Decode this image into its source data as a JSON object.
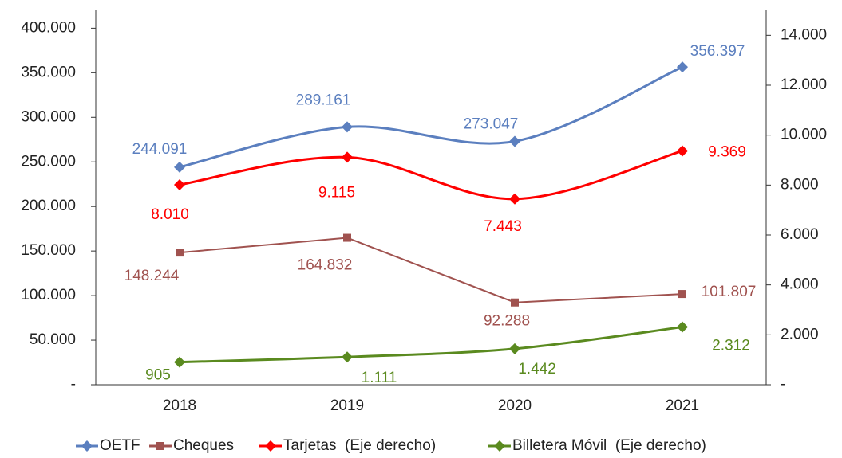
{
  "chart_data": {
    "type": "line",
    "categories": [
      "2018",
      "2019",
      "2020",
      "2021"
    ],
    "ylim": [
      0,
      420000
    ],
    "yticks": [
      {
        "value": 0,
        "label": "-"
      },
      {
        "value": 50000,
        "label": "50.000"
      },
      {
        "value": 100000,
        "label": "100.000"
      },
      {
        "value": 150000,
        "label": "150.000"
      },
      {
        "value": 200000,
        "label": "200.000"
      },
      {
        "value": 250000,
        "label": "250.000"
      },
      {
        "value": 300000,
        "label": "300.000"
      },
      {
        "value": 350000,
        "label": "350.000"
      },
      {
        "value": 400000,
        "label": "400.000"
      }
    ],
    "y2lim": [
      0,
      15000
    ],
    "y2ticks": [
      {
        "value": 0,
        "label": "-"
      },
      {
        "value": 2000,
        "label": "2.000"
      },
      {
        "value": 4000,
        "label": "4.000"
      },
      {
        "value": 6000,
        "label": "6.000"
      },
      {
        "value": 8000,
        "label": "8.000"
      },
      {
        "value": 10000,
        "label": "10.000"
      },
      {
        "value": 12000,
        "label": "12.000"
      },
      {
        "value": 14000,
        "label": "14.000"
      }
    ],
    "legend": "bottom",
    "series": [
      {
        "name": "OETF",
        "color": "#5b7fbf",
        "marker": "diamond",
        "smooth": true,
        "values": [
          244091,
          289161,
          273047,
          356397
        ],
        "value_labels": [
          "244.091",
          "289.161",
          "273.047",
          "356.397"
        ]
      },
      {
        "name": "Cheques",
        "color": "#a0524f",
        "marker": "square",
        "smooth": false,
        "values": [
          148244,
          164832,
          92288,
          101807
        ],
        "value_labels": [
          "148.244",
          "164.832",
          "92.288",
          "101.807"
        ]
      },
      {
        "name": "Tarjetas  (Eje derecho)",
        "color": "#ff0000",
        "marker": "diamond",
        "smooth": true,
        "axis": "y2",
        "values": [
          8010,
          9115,
          7443,
          9369
        ],
        "value_labels": [
          "8.010",
          "9.115",
          "7.443",
          "9.369"
        ]
      },
      {
        "name": "Billetera Móvil  (Eje derecho)",
        "color": "#5a8a1f",
        "marker": "diamond",
        "smooth": true,
        "axis": "y2",
        "values": [
          905,
          1111,
          1442,
          2312
        ],
        "value_labels": [
          "905",
          "1.111",
          "1.442",
          "2.312"
        ]
      }
    ]
  }
}
